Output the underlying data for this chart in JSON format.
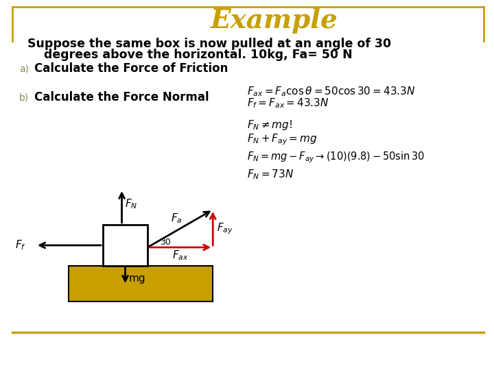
{
  "title": "Example",
  "title_color": "#C8A000",
  "background_color": "#FFFFFF",
  "border_color": "#C8A000",
  "main_text_line1": "Suppose the same box is now pulled at an angle of 30",
  "main_text_line2": "    degrees above the horizontal. 10kg, Fa= 50 N",
  "part_a_label": "a)",
  "part_a_text": "Calculate the Force of Friction",
  "part_b_label": "b)",
  "part_b_text": "Calculate the Force Normal",
  "eq1": "$F_{ax} = F_a \\cos\\theta = 50\\cos 30 = 43.3N$",
  "eq2": "$F_f = F_{ax} = 43.3N$",
  "eq3": "$F_N \\neq mg!$",
  "eq4": "$F_N + F_{ay} = mg$",
  "eq5": "$F_N = mg - F_{ay} \\rightarrow (10)(9.8) - 50\\sin 30$",
  "eq6": "$F_N = 73N$",
  "bottom_line_color": "#C8A000",
  "arrow_color": "#000000",
  "red_arrow_color": "#CC0000",
  "box_fill": "#FFFFFF",
  "box_edge": "#000000",
  "ground_fill": "#C8A000",
  "angle_label": "30"
}
